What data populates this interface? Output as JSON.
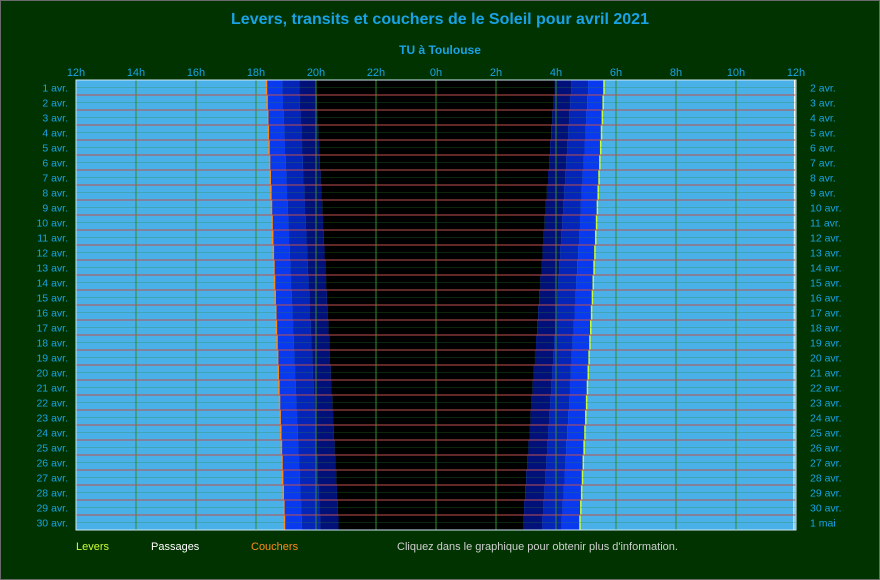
{
  "header": {
    "title": "Levers, transits et couchers de le Soleil pour avril 2021",
    "subtitle": "TU à Toulouse"
  },
  "legend": {
    "rise": "Levers",
    "transit": "Passages",
    "set": "Couchers",
    "hint": "Cliquez dans le graphique pour obtenir plus d'information."
  },
  "colors": {
    "background": "#003300",
    "day": "#4ab0e8",
    "night": "#000000",
    "twilight_civil": "#0a3af0",
    "twilight_nautical": "#0524b8",
    "twilight_astronomical": "#02107a",
    "grid": "#2e8b2e",
    "row_line": "#c0504d",
    "rise_line": "#ccff33",
    "set_line": "#ff8c1a",
    "text": "#19a3e6"
  },
  "chart_data": {
    "type": "heatmap",
    "title": "Levers, transits et couchers de le Soleil pour avril 2021",
    "subtitle": "TU à Toulouse",
    "x_axis": {
      "ticks": [
        "12h",
        "14h",
        "16h",
        "18h",
        "20h",
        "22h",
        "0h",
        "2h",
        "4h",
        "6h",
        "8h",
        "10h",
        "12h"
      ],
      "range_hours_from_noon": [
        0,
        24
      ]
    },
    "left_labels": [
      "1 avr.",
      "2 avr.",
      "3 avr.",
      "4 avr.",
      "5 avr.",
      "6 avr.",
      "7 avr.",
      "8 avr.",
      "9 avr.",
      "10 avr.",
      "11 avr.",
      "12 avr.",
      "13 avr.",
      "14 avr.",
      "15 avr.",
      "16 avr.",
      "17 avr.",
      "18 avr.",
      "19 avr.",
      "20 avr.",
      "21 avr.",
      "22 avr.",
      "23 avr.",
      "24 avr.",
      "25 avr.",
      "26 avr.",
      "27 avr.",
      "28 avr.",
      "29 avr.",
      "30 avr."
    ],
    "right_labels": [
      "2 avr.",
      "3 avr.",
      "4 avr.",
      "5 avr.",
      "6 avr.",
      "7 avr.",
      "8 avr.",
      "9 avr.",
      "10 avr.",
      "11 avr.",
      "12 avr.",
      "13 avr.",
      "14 avr.",
      "15 avr.",
      "16 avr.",
      "17 avr.",
      "18 avr.",
      "19 avr.",
      "20 avr.",
      "21 avr.",
      "22 avr.",
      "23 avr.",
      "24 avr.",
      "25 avr.",
      "26 avr.",
      "27 avr.",
      "28 avr.",
      "29 avr.",
      "30 avr.",
      "1 mai"
    ],
    "sunset_hours_ut": {
      "first": 18.35,
      "last": 18.95
    },
    "sunrise_hours_ut": {
      "first": 5.6,
      "last": 4.8
    },
    "astronomical_night_hours_ut": {
      "start_first": 20.0,
      "start_last": 20.75,
      "end_first": 3.95,
      "end_last": 2.9
    },
    "transit_hours_ut": {
      "first": 11.95,
      "last": 11.93
    },
    "grid": true,
    "legend_position": "bottom-left"
  }
}
